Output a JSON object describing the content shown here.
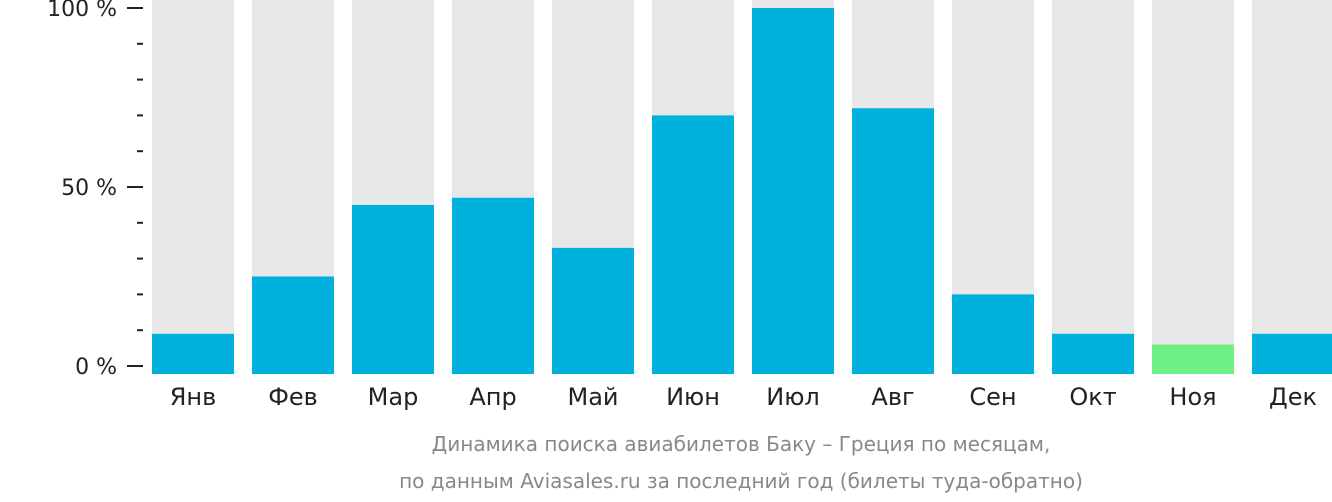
{
  "chart_data": {
    "type": "bar",
    "categories": [
      "Янв",
      "Фев",
      "Мар",
      "Апр",
      "Май",
      "Июн",
      "Июл",
      "Авг",
      "Сен",
      "Окт",
      "Ноя",
      "Дек"
    ],
    "values": [
      9,
      25,
      45,
      47,
      33,
      70,
      100,
      72,
      20,
      9,
      6,
      9
    ],
    "ylim": [
      0,
      100
    ],
    "yticks": [
      {
        "value": 100,
        "label": "100 %"
      },
      {
        "value": 50,
        "label": "50 %"
      },
      {
        "value": 0,
        "label": "0 %"
      }
    ],
    "minor_tick_step": 10,
    "highlight_index": 10,
    "caption_line1": "Динамика поиска авиабилетов Баку – Греция по месяцам,",
    "caption_line2": "по данным Aviasales.ru за последний год (билеты туда-обратно)",
    "colors": {
      "bar": "#00b0dd",
      "bar_min": "#6ef087",
      "background_bar": "#e8e8e8",
      "axis": "#222222"
    }
  }
}
